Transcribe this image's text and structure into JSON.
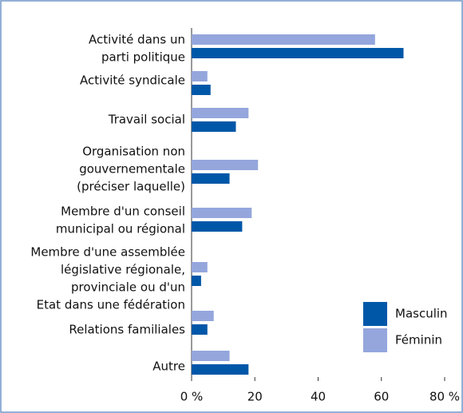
{
  "chart_data": {
    "type": "hbar",
    "categories": [
      [
        "Activité dans un",
        "parti politique"
      ],
      [
        "Activité syndicale"
      ],
      [
        "Travail social"
      ],
      [
        "Organisation non",
        "gouvernementale",
        "(préciser laquelle)"
      ],
      [
        "Membre d'un conseil",
        "municipal ou régional"
      ],
      [
        "Membre d'une assemblée",
        "législative régionale,",
        "provinciale ou d'un",
        "Etat dans une fédération"
      ],
      [
        "Relations familiales"
      ],
      [
        "Autre"
      ]
    ],
    "series": [
      {
        "name": "Masculin",
        "color": "#0057a8",
        "values": [
          67,
          6,
          14,
          12,
          16,
          3,
          5,
          18
        ]
      },
      {
        "name": "Féminin",
        "color": "#94a6dc",
        "values": [
          58,
          5,
          18,
          21,
          19,
          5,
          7,
          12
        ]
      }
    ],
    "xlim": [
      0,
      80
    ],
    "xticks": [
      {
        "value": 0,
        "label": "0 %"
      },
      20,
      40,
      60,
      {
        "value": 80,
        "label": "80 %"
      }
    ],
    "legend": "lower right"
  }
}
